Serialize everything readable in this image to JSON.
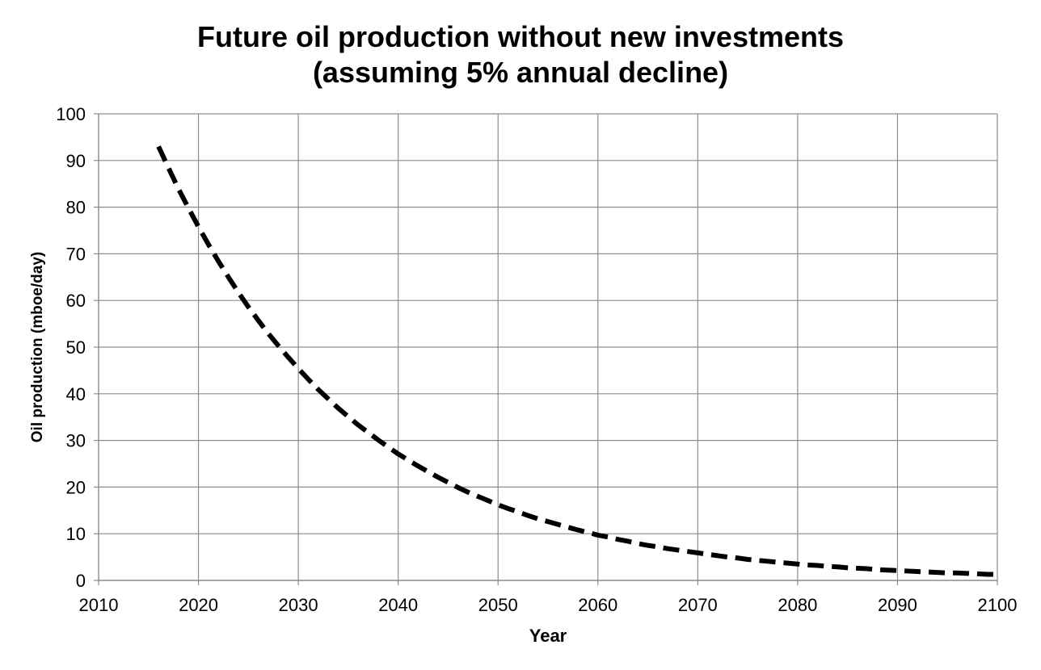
{
  "chart_data": {
    "type": "line",
    "title": "Future oil production without new investments",
    "subtitle": "(assuming 5% annual decline)",
    "xlabel": "Year",
    "ylabel": "Oil production (mboe/day)",
    "xlim": [
      2010,
      2100
    ],
    "ylim": [
      0,
      100
    ],
    "x_ticks": [
      "2010",
      "2020",
      "2030",
      "2040",
      "2050",
      "2060",
      "2070",
      "2080",
      "2090",
      "2100"
    ],
    "y_ticks": [
      "0",
      "10",
      "20",
      "30",
      "40",
      "50",
      "60",
      "70",
      "80",
      "90",
      "100"
    ],
    "grid": true,
    "legend": "none",
    "line_style": "dashed",
    "line_color": "#000000",
    "series": [
      {
        "x": [
          2016,
          2017,
          2018,
          2019,
          2020,
          2021,
          2022,
          2023,
          2024,
          2025,
          2026,
          2027,
          2028,
          2029,
          2030,
          2031,
          2032,
          2033,
          2034,
          2035,
          2036,
          2037,
          2038,
          2039,
          2040,
          2041,
          2042,
          2043,
          2044,
          2045,
          2046,
          2047,
          2048,
          2049,
          2050,
          2051,
          2052,
          2053,
          2054,
          2055,
          2056,
          2057,
          2058,
          2059,
          2060,
          2061,
          2062,
          2063,
          2064,
          2065,
          2066,
          2067,
          2068,
          2069,
          2070,
          2071,
          2072,
          2073,
          2074,
          2075,
          2076,
          2077,
          2078,
          2079,
          2080,
          2081,
          2082,
          2083,
          2084,
          2085,
          2086,
          2087,
          2088,
          2089,
          2090,
          2091,
          2092,
          2093,
          2094,
          2095,
          2096,
          2097,
          2098,
          2099,
          2100
        ],
        "y": [
          93,
          88.4,
          83.9,
          79.8,
          75.8,
          72,
          68.4,
          65,
          61.7,
          58.6,
          55.7,
          52.9,
          50.3,
          47.8,
          45.4,
          43.1,
          40.9,
          38.9,
          36.9,
          35.1,
          33.3,
          31.7,
          30.1,
          28.6,
          27.1,
          25.8,
          24.5,
          23.3,
          22.1,
          21,
          19.9,
          18.9,
          18,
          17.1,
          16.2,
          15.4,
          14.7,
          13.9,
          13.2,
          12.6,
          12,
          11.4,
          10.8,
          10.3,
          9.7,
          9.3,
          8.8,
          8.4,
          7.9,
          7.5,
          7.2,
          6.8,
          6.5,
          6.2,
          5.9,
          5.6,
          5.3,
          5,
          4.8,
          4.5,
          4.3,
          4.1,
          3.9,
          3.7,
          3.5,
          3.3,
          3.2,
          3,
          2.9,
          2.7,
          2.6,
          2.5,
          2.3,
          2.2,
          2.1,
          2,
          1.9,
          1.8,
          1.7,
          1.6,
          1.6,
          1.5,
          1.4,
          1.3,
          1.3
        ]
      }
    ]
  }
}
